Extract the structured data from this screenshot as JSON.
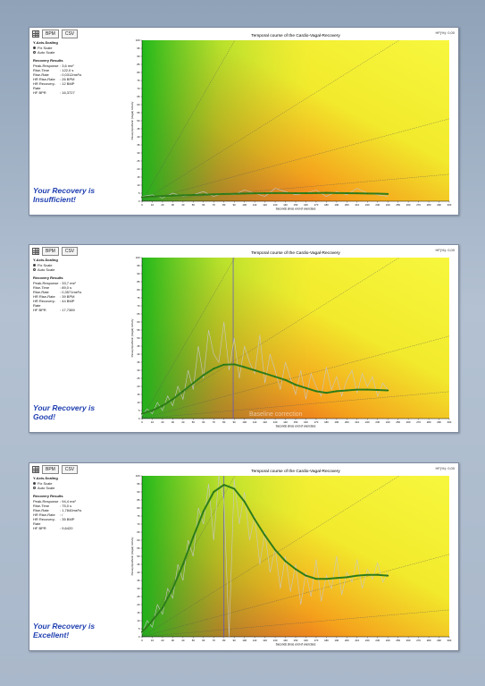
{
  "panels": [
    {
      "toolbar": {
        "bpm_label": "BPM",
        "csv_label": "CSV"
      },
      "hf_label": "HF(%): 0,00",
      "y_axis_scaling": {
        "title": "Y-Axis-Scaling",
        "options": [
          "Fix Scale",
          "Auto Scale"
        ],
        "selected": "Fix Scale"
      },
      "recovery_results": {
        "title": "Recovery Results",
        "rows": [
          {
            "k": "Peak-Response",
            "v": ": 3,6 ms²"
          },
          {
            "k": "Rise-Time",
            "v": ": 122,0 s"
          },
          {
            "k": "Rise-Rate",
            "v": ": 0,0312ms²/s"
          },
          {
            "k": "HR Rise-Rate",
            "v": ": 26 BPM"
          },
          {
            "k": "HR Recovery-Rate",
            "v": ": 12 BMP"
          },
          {
            "k": "HF BPR",
            "v": ": 16,3727"
          }
        ]
      },
      "verdict": [
        "Your Recovery is",
        "Insufficient!"
      ],
      "chart_data": {
        "type": "line",
        "title": "Temporal course of the Cardio-Vagal-Recovery",
        "xlabel": "Seconds since end of exercises",
        "ylabel": "Parasympathetic (Vagal) Activity",
        "xlim": [
          0,
          300
        ],
        "ylim": [
          0,
          100
        ],
        "x_ticks": [
          0,
          10,
          20,
          30,
          40,
          50,
          60,
          70,
          80,
          90,
          100,
          110,
          120,
          130,
          140,
          150,
          160,
          170,
          180,
          190,
          200,
          210,
          220,
          230,
          240,
          250,
          260,
          270,
          280,
          290,
          300
        ],
        "y_ticks": [
          0,
          5,
          10,
          15,
          20,
          25,
          30,
          35,
          40,
          45,
          50,
          55,
          60,
          65,
          70,
          75,
          80,
          85,
          90,
          95,
          100
        ],
        "reference_lines_slope_deg": [
          5,
          15,
          32,
          60
        ],
        "peak_marker_x": null,
        "overlay_text": "",
        "series": [
          {
            "role": "raw",
            "color": "#c8c8c8",
            "x": [
              0,
              10,
              20,
              30,
              40,
              50,
              60,
              70,
              80,
              90,
              100,
              110,
              120,
              130,
              140,
              150,
              160,
              170,
              180,
              190,
              200,
              210,
              220,
              230,
              240
            ],
            "y": [
              3,
              4,
              2,
              5,
              3,
              4,
              6,
              3,
              5,
              4,
              7,
              5,
              3,
              8,
              6,
              4,
              5,
              7,
              3,
              6,
              4,
              8,
              5,
              4,
              3
            ]
          },
          {
            "role": "smoothed",
            "color": "#2e7d1a",
            "x": [
              0,
              10,
              20,
              30,
              40,
              50,
              60,
              70,
              80,
              90,
              100,
              110,
              120,
              130,
              140,
              150,
              160,
              170,
              180,
              190,
              200,
              210,
              220,
              230,
              240
            ],
            "y": [
              2.5,
              3,
              3.2,
              3.5,
              3.7,
              3.9,
              4.1,
              4.3,
              4.5,
              4.6,
              4.8,
              4.9,
              5,
              5.1,
              5.1,
              5,
              5,
              5.1,
              5.2,
              5.1,
              5,
              4.9,
              4.8,
              4.7,
              4.5
            ]
          }
        ]
      }
    },
    {
      "toolbar": {
        "bpm_label": "BPM",
        "csv_label": "CSV"
      },
      "hf_label": "HF(%): 0,00",
      "y_axis_scaling": {
        "title": "Y-Axis-Scaling",
        "options": [
          "Fix Scale",
          "Auto Scale"
        ],
        "selected": "Fix Scale"
      },
      "recovery_results": {
        "title": "Recovery Results",
        "rows": [
          {
            "k": "Peak-Response",
            "v": ": 33,7 ms²"
          },
          {
            "k": "Rise-Time",
            "v": ": 89,0 s"
          },
          {
            "k": "Rise-Rate",
            "v": ": 0,3571ms²/s"
          },
          {
            "k": "HR Rise-Rate",
            "v": ": 39 BPM"
          },
          {
            "k": "HR Recovery-Rate",
            "v": ": 44 BMP"
          },
          {
            "k": "HF BPR",
            "v": ": 17,7389"
          }
        ]
      },
      "verdict": [
        "Your Recovery is",
        "Good!"
      ],
      "chart_data": {
        "type": "line",
        "title": "Temporal course of the Cardio-Vagal-Recovery",
        "xlabel": "Seconds since end of exercises",
        "ylabel": "Parasympathetic (Vagal) Activity",
        "xlim": [
          0,
          300
        ],
        "ylim": [
          0,
          100
        ],
        "x_ticks": [
          0,
          10,
          20,
          30,
          40,
          50,
          60,
          70,
          80,
          90,
          100,
          110,
          120,
          130,
          140,
          150,
          160,
          170,
          180,
          190,
          200,
          210,
          220,
          230,
          240,
          250,
          260,
          270,
          280,
          290,
          300
        ],
        "y_ticks": [
          0,
          5,
          10,
          15,
          20,
          25,
          30,
          35,
          40,
          45,
          50,
          55,
          60,
          65,
          70,
          75,
          80,
          85,
          90,
          95,
          100
        ],
        "reference_lines_slope_deg": [
          5,
          15,
          32,
          60
        ],
        "peak_marker_x": 89,
        "overlay_text": "Baseline correction",
        "series": [
          {
            "role": "raw",
            "color": "#c8c8c8",
            "x": [
              0,
              5,
              10,
              15,
              20,
              25,
              30,
              35,
              40,
              45,
              50,
              55,
              60,
              65,
              70,
              75,
              80,
              85,
              90,
              95,
              100,
              105,
              110,
              115,
              120,
              125,
              130,
              135,
              140,
              145,
              150,
              155,
              160,
              165,
              170,
              175,
              180,
              185,
              190,
              195,
              200,
              205,
              210,
              215,
              220,
              225,
              230,
              235,
              240
            ],
            "y": [
              2,
              6,
              3,
              10,
              5,
              14,
              8,
              20,
              12,
              30,
              18,
              45,
              25,
              55,
              40,
              35,
              60,
              30,
              50,
              25,
              45,
              35,
              28,
              52,
              22,
              40,
              30,
              18,
              35,
              25,
              15,
              30,
              12,
              28,
              20,
              14,
              32,
              18,
              26,
              14,
              24,
              30,
              16,
              28,
              20,
              26,
              14,
              22,
              18
            ]
          },
          {
            "role": "smoothed",
            "color": "#2e7d1a",
            "x": [
              0,
              10,
              20,
              30,
              40,
              50,
              60,
              70,
              80,
              90,
              100,
              110,
              120,
              130,
              140,
              150,
              160,
              170,
              180,
              190,
              200,
              210,
              220,
              230,
              240
            ],
            "y": [
              3,
              5,
              8,
              12,
              17,
              22,
              27,
              31,
              33.5,
              33.7,
              32,
              30,
              28,
              26,
              24,
              21,
              19,
              17,
              16,
              17,
              17.5,
              18,
              18,
              17.8,
              17.5
            ]
          }
        ]
      }
    },
    {
      "toolbar": {
        "bpm_label": "BPM",
        "csv_label": "CSV"
      },
      "hf_label": "HF(%): 0,00",
      "y_axis_scaling": {
        "title": "Y-Axis-Scaling",
        "options": [
          "Fix Scale",
          "Auto Scale"
        ],
        "selected": "Fix Scale"
      },
      "recovery_results": {
        "title": "Recovery Results",
        "rows": [
          {
            "k": "Peak-Response",
            "v": ": 94,4 ms²"
          },
          {
            "k": "Rise-Time",
            "v": ": 75,0 s"
          },
          {
            "k": "Rise-Rate",
            "v": ": 1,7840ms²/s"
          },
          {
            "k": "HR Rise-Rate",
            "v": ": /"
          },
          {
            "k": "HR Recovery-Rate",
            "v": ": 35 BMP"
          },
          {
            "k": "HF BPR",
            "v": ": 9,6420"
          }
        ]
      },
      "verdict": [
        "Your Recovery is",
        "Excellent!"
      ],
      "chart_data": {
        "type": "line",
        "title": "Temporal course of the Cardio-Vagal-Recovery",
        "xlabel": "Seconds since end of exercises",
        "ylabel": "Parasympathetic (Vagal) Activity",
        "xlim": [
          0,
          300
        ],
        "ylim": [
          0,
          100
        ],
        "x_ticks": [
          0,
          10,
          20,
          30,
          40,
          50,
          60,
          70,
          80,
          90,
          100,
          110,
          120,
          130,
          140,
          150,
          160,
          170,
          180,
          190,
          200,
          210,
          220,
          230,
          240,
          250,
          260,
          270,
          280,
          290,
          300
        ],
        "y_ticks": [
          0,
          5,
          10,
          15,
          20,
          25,
          30,
          35,
          40,
          45,
          50,
          55,
          60,
          65,
          70,
          75,
          80,
          85,
          90,
          95,
          100
        ],
        "reference_lines_slope_deg": [
          5,
          15,
          32,
          60
        ],
        "peak_marker_x": 80,
        "overlay_text": "",
        "series": [
          {
            "role": "raw",
            "color": "#c8c8c8",
            "x": [
              0,
              5,
              10,
              15,
              20,
              25,
              30,
              35,
              40,
              45,
              50,
              55,
              60,
              65,
              70,
              75,
              80,
              85,
              90,
              95,
              100,
              105,
              110,
              115,
              120,
              125,
              130,
              135,
              140,
              145,
              150,
              155,
              160,
              165,
              170,
              175,
              180,
              185,
              190,
              195,
              200,
              205,
              210,
              215,
              220,
              225,
              230,
              235,
              240
            ],
            "y": [
              2,
              10,
              6,
              20,
              14,
              30,
              24,
              45,
              35,
              60,
              50,
              80,
              70,
              95,
              60,
              100,
              85,
              0,
              98,
              70,
              90,
              60,
              75,
              45,
              65,
              40,
              55,
              30,
              50,
              28,
              45,
              20,
              40,
              25,
              48,
              22,
              38,
              30,
              50,
              26,
              40,
              34,
              48,
              30,
              42,
              36,
              46,
              34,
              40
            ]
          },
          {
            "role": "smoothed",
            "color": "#2e7d1a",
            "x": [
              0,
              10,
              20,
              30,
              40,
              50,
              60,
              70,
              80,
              90,
              100,
              110,
              120,
              130,
              140,
              150,
              160,
              170,
              180,
              190,
              200,
              210,
              220,
              230,
              240
            ],
            "y": [
              3,
              10,
              18,
              30,
              45,
              62,
              78,
              90,
              94.4,
              92,
              84,
              73,
              63,
              54,
              47,
              42,
              38,
              36,
              36,
              36.5,
              37,
              38,
              38.5,
              38.5,
              38
            ]
          }
        ]
      }
    }
  ]
}
